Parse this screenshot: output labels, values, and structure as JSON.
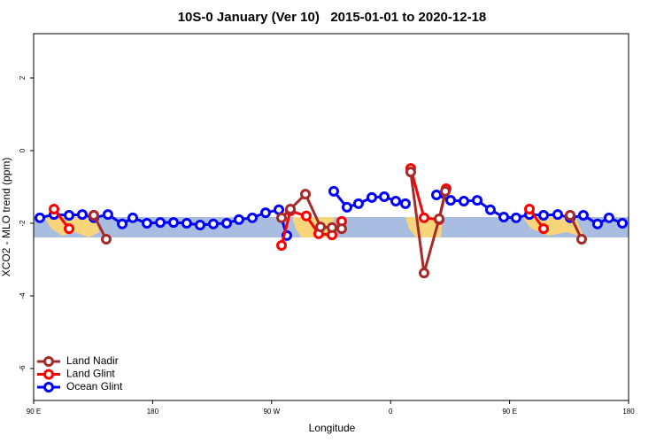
{
  "chart_data": {
    "type": "line",
    "title": "10S-0 January (Ver 10)   2015-01-01 to 2020-12-18",
    "x_label": "Longitude",
    "y_label": "XCO2 - MLO trend (ppm)",
    "xlim": [
      90,
      540
    ],
    "ylim": [
      -6.88,
      3.22
    ],
    "xticks": [
      {
        "value": 90,
        "label": "90 E"
      },
      180,
      {
        "value": 270,
        "label": "90 W"
      },
      {
        "value": 360,
        "label": "0"
      },
      {
        "value": 450,
        "label": "90 E"
      },
      {
        "value": 540,
        "label": "180"
      }
    ],
    "yticks": [
      2,
      0,
      -2,
      -4,
      -6
    ],
    "legend": "bottom-left",
    "series": [
      {
        "name": "Land Nadir",
        "color": "#a52a2a",
        "x": [
          135.5,
          144.9,
          null,
          277.5,
          284.2,
          295.6,
          307.0,
          315.7,
          323.0,
          null,
          375.2,
          385.3,
          396.7,
          401.4,
          null,
          495.8,
          504.5
        ],
        "values": [
          -1.78,
          -2.44,
          null,
          -1.85,
          -1.61,
          -1.2,
          -2.1,
          -2.12,
          -2.15,
          null,
          -0.59,
          -3.37,
          -1.88,
          -1.12,
          null,
          -1.78,
          -2.44
        ]
      },
      {
        "name": "Land Glint",
        "color": "#ff0000",
        "x": [
          105.4,
          116.8,
          null,
          135.5,
          null,
          277.5,
          284.2,
          296.2,
          305.6,
          315.7,
          323.0,
          null,
          375.2,
          385.3,
          396.7,
          402.0,
          null,
          465.0,
          475.7,
          null,
          495.8
        ],
        "values": [
          -1.61,
          -2.15,
          null,
          -1.78,
          null,
          -2.61,
          -1.66,
          -1.8,
          -2.29,
          -2.32,
          -1.95,
          null,
          -0.49,
          -1.85,
          -1.9,
          -1.05,
          null,
          -1.61,
          -2.15,
          null,
          -1.78
        ]
      },
      {
        "name": "Ocean Glint",
        "color": "#0000ff",
        "x": [
          94.7,
          105.4,
          116.8,
          126.8,
          135.5,
          146.2,
          157.0,
          165.0,
          175.7,
          185.8,
          195.8,
          205.8,
          215.9,
          225.9,
          236.0,
          245.3,
          255.4,
          265.4,
          275.5,
          281.5,
          null,
          317.0,
          327.0,
          335.7,
          345.8,
          355.2,
          363.9,
          371.2,
          null,
          394.7,
          405.4,
          415.4,
          425.5,
          435.5,
          445.6,
          454.9,
          465.0,
          475.7,
          486.4,
          495.8,
          505.8,
          516.5,
          525.2,
          535.3
        ],
        "values": [
          -1.85,
          -1.76,
          -1.78,
          -1.76,
          -1.85,
          -1.76,
          -2.02,
          -1.85,
          -2.0,
          -1.98,
          -1.98,
          -2.0,
          -2.05,
          -2.02,
          -2.0,
          -1.9,
          -1.85,
          -1.71,
          -1.63,
          -2.34,
          null,
          -1.12,
          -1.56,
          -1.46,
          -1.29,
          -1.27,
          -1.39,
          -1.46,
          null,
          -1.22,
          -1.37,
          -1.39,
          -1.37,
          -1.63,
          -1.83,
          -1.85,
          -1.76,
          -1.78,
          -1.76,
          -1.85,
          -1.78,
          -2.02,
          -1.85,
          -2.0
        ]
      }
    ]
  }
}
